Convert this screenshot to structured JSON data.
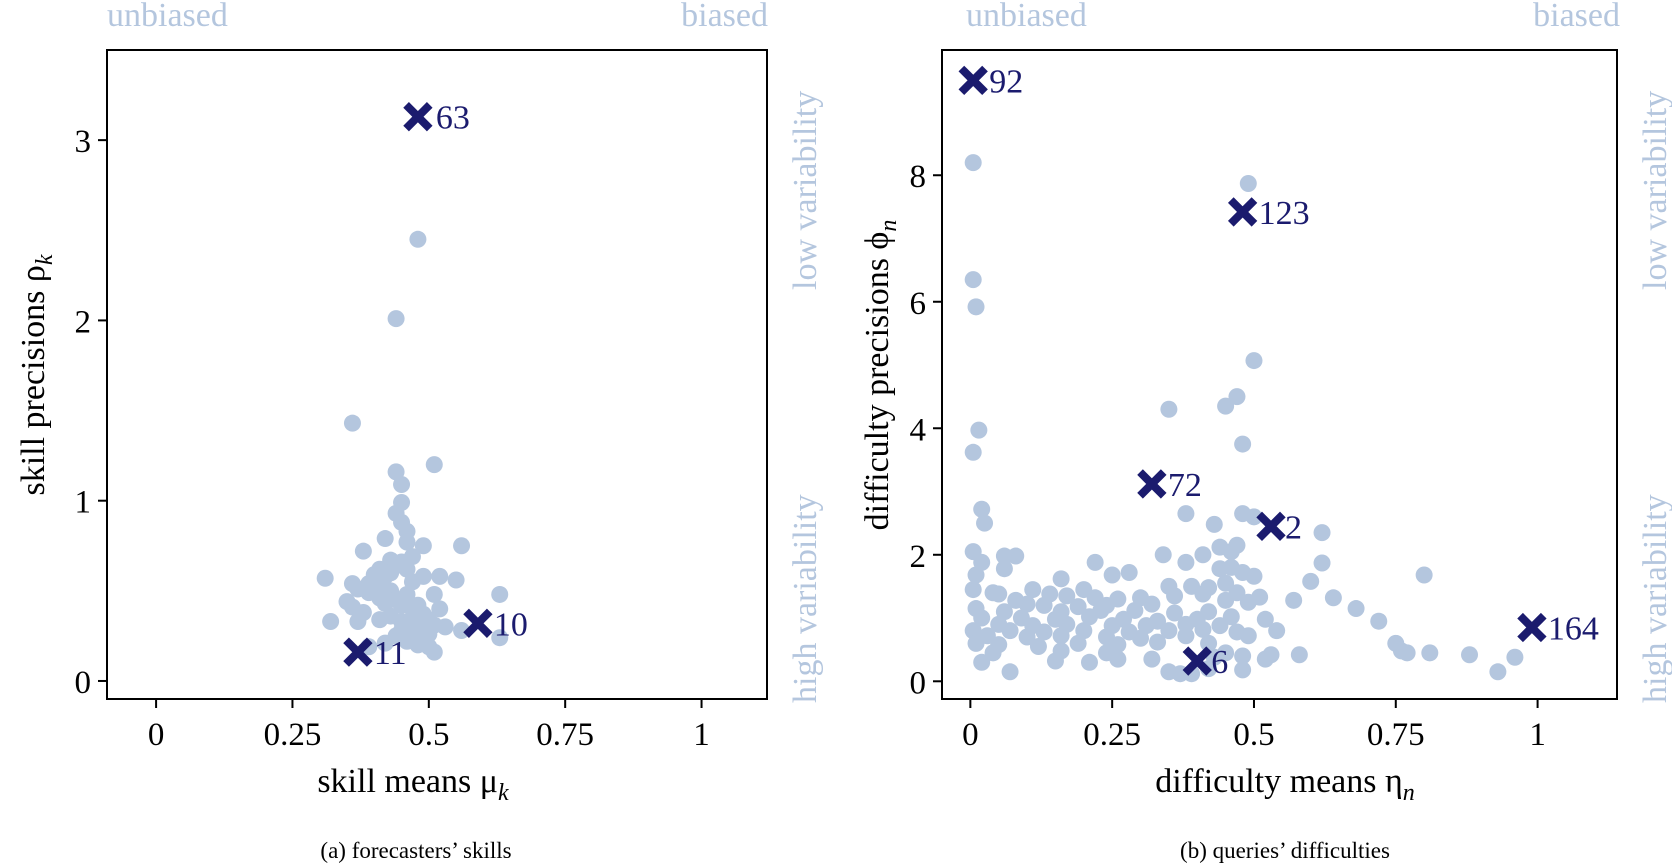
{
  "colors": {
    "points": "#b4c6de",
    "highlight": "#1b1b6e",
    "axes": "#000000",
    "faint_text": "#b4c6de"
  },
  "panel_a": {
    "caption": "(a) forecasters’ skills",
    "corner_left": "unbiased",
    "corner_right": "biased",
    "side_top": "low variability",
    "side_bottom": "high variability"
  },
  "panel_b": {
    "caption": "(b) queries’ difficulties",
    "corner_left": "unbiased",
    "corner_right": "biased",
    "side_top": "low variability",
    "side_bottom": "high variability"
  },
  "chart_data": [
    {
      "type": "scatter",
      "title": "",
      "xlabel": "skill means μ",
      "xlabel_subscript": "k",
      "ylabel": "skill precisions ρ",
      "ylabel_subscript": "k",
      "xlim": [
        -0.09,
        1.12
      ],
      "ylim": [
        -0.1,
        3.5
      ],
      "xticks": [
        0,
        0.25,
        0.5,
        0.75,
        1
      ],
      "xtick_labels": [
        "0",
        "0.25",
        "0.5",
        "0.75",
        "1"
      ],
      "yticks": [
        0,
        1,
        2,
        3
      ],
      "ytick_labels": [
        "0",
        "1",
        "2",
        "3"
      ],
      "grid": false,
      "series": [
        {
          "marker": "circle",
          "points": [
            [
              0.48,
              2.45
            ],
            [
              0.44,
              2.01
            ],
            [
              0.36,
              1.43
            ],
            [
              0.51,
              1.2
            ],
            [
              0.44,
              1.16
            ],
            [
              0.45,
              1.09
            ],
            [
              0.45,
              0.99
            ],
            [
              0.44,
              0.93
            ],
            [
              0.45,
              0.88
            ],
            [
              0.46,
              0.83
            ],
            [
              0.42,
              0.79
            ],
            [
              0.46,
              0.77
            ],
            [
              0.49,
              0.75
            ],
            [
              0.56,
              0.75
            ],
            [
              0.38,
              0.72
            ],
            [
              0.47,
              0.69
            ],
            [
              0.43,
              0.67
            ],
            [
              0.45,
              0.66
            ],
            [
              0.44,
              0.64
            ],
            [
              0.41,
              0.62
            ],
            [
              0.46,
              0.62
            ],
            [
              0.43,
              0.6
            ],
            [
              0.4,
              0.59
            ],
            [
              0.42,
              0.58
            ],
            [
              0.49,
              0.58
            ],
            [
              0.52,
              0.58
            ],
            [
              0.31,
              0.57
            ],
            [
              0.55,
              0.56
            ],
            [
              0.47,
              0.55
            ],
            [
              0.39,
              0.54
            ],
            [
              0.36,
              0.54
            ],
            [
              0.37,
              0.51
            ],
            [
              0.41,
              0.51
            ],
            [
              0.43,
              0.5
            ],
            [
              0.39,
              0.49
            ],
            [
              0.46,
              0.48
            ],
            [
              0.51,
              0.48
            ],
            [
              0.63,
              0.48
            ],
            [
              0.41,
              0.46
            ],
            [
              0.44,
              0.45
            ],
            [
              0.35,
              0.44
            ],
            [
              0.42,
              0.43
            ],
            [
              0.45,
              0.42
            ],
            [
              0.48,
              0.42
            ],
            [
              0.36,
              0.41
            ],
            [
              0.47,
              0.4
            ],
            [
              0.52,
              0.4
            ],
            [
              0.38,
              0.38
            ],
            [
              0.49,
              0.37
            ],
            [
              0.43,
              0.36
            ],
            [
              0.47,
              0.35
            ],
            [
              0.5,
              0.34
            ],
            [
              0.41,
              0.34
            ],
            [
              0.45,
              0.33
            ],
            [
              0.32,
              0.33
            ],
            [
              0.37,
              0.33
            ],
            [
              0.46,
              0.31
            ],
            [
              0.51,
              0.31
            ],
            [
              0.53,
              0.3
            ],
            [
              0.48,
              0.29
            ],
            [
              0.45,
              0.28
            ],
            [
              0.56,
              0.28
            ],
            [
              0.47,
              0.27
            ],
            [
              0.5,
              0.26
            ],
            [
              0.44,
              0.25
            ],
            [
              0.49,
              0.25
            ],
            [
              0.63,
              0.24
            ],
            [
              0.46,
              0.22
            ],
            [
              0.42,
              0.21
            ],
            [
              0.48,
              0.2
            ],
            [
              0.5,
              0.19
            ],
            [
              0.51,
              0.16
            ],
            [
              0.39,
              0.19
            ]
          ]
        },
        {
          "marker": "x",
          "highlighted": true,
          "points": [
            [
              0.48,
              3.13
            ],
            [
              0.59,
              0.32
            ],
            [
              0.37,
              0.16
            ]
          ],
          "labels": [
            "63",
            "10",
            "11"
          ]
        }
      ]
    },
    {
      "type": "scatter",
      "title": "",
      "xlabel": "difficulty means η",
      "xlabel_subscript": "n",
      "ylabel": "difficulty precisions ϕ",
      "ylabel_subscript": "n",
      "xlim": [
        -0.05,
        1.14
      ],
      "ylim": [
        -0.28,
        9.98
      ],
      "xticks": [
        0,
        0.25,
        0.5,
        0.75,
        1
      ],
      "xtick_labels": [
        "0",
        "0.25",
        "0.5",
        "0.75",
        "1"
      ],
      "yticks": [
        0,
        2,
        4,
        6,
        8
      ],
      "ytick_labels": [
        "0",
        "2",
        "4",
        "6",
        "8"
      ],
      "grid": false,
      "series": [
        {
          "marker": "circle",
          "points": [
            [
              0.005,
              8.2
            ],
            [
              0.49,
              7.87
            ],
            [
              0.005,
              6.35
            ],
            [
              0.01,
              5.92
            ],
            [
              0.5,
              5.07
            ],
            [
              0.47,
              4.5
            ],
            [
              0.45,
              4.35
            ],
            [
              0.35,
              4.3
            ],
            [
              0.015,
              3.97
            ],
            [
              0.005,
              3.62
            ],
            [
              0.48,
              3.75
            ],
            [
              0.02,
              2.72
            ],
            [
              0.38,
              2.65
            ],
            [
              0.43,
              2.48
            ],
            [
              0.48,
              2.65
            ],
            [
              0.5,
              2.6
            ],
            [
              0.025,
              2.5
            ],
            [
              0.62,
              2.35
            ],
            [
              0.47,
              2.15
            ],
            [
              0.46,
              2.05
            ],
            [
              0.44,
              2.12
            ],
            [
              0.41,
              2.0
            ],
            [
              0.34,
              2.0
            ],
            [
              0.005,
              2.05
            ],
            [
              0.06,
              1.98
            ],
            [
              0.08,
              1.98
            ],
            [
              0.02,
              1.88
            ],
            [
              0.22,
              1.88
            ],
            [
              0.38,
              1.88
            ],
            [
              0.62,
              1.87
            ],
            [
              0.46,
              1.8
            ],
            [
              0.44,
              1.78
            ],
            [
              0.48,
              1.72
            ],
            [
              0.28,
              1.72
            ],
            [
              0.25,
              1.68
            ],
            [
              0.06,
              1.78
            ],
            [
              0.8,
              1.68
            ],
            [
              0.01,
              1.68
            ],
            [
              0.16,
              1.62
            ],
            [
              0.5,
              1.66
            ],
            [
              0.45,
              1.55
            ],
            [
              0.04,
              1.4
            ],
            [
              0.11,
              1.45
            ],
            [
              0.2,
              1.45
            ],
            [
              0.35,
              1.5
            ],
            [
              0.39,
              1.5
            ],
            [
              0.42,
              1.48
            ],
            [
              0.6,
              1.58
            ],
            [
              0.005,
              1.45
            ],
            [
              0.05,
              1.38
            ],
            [
              0.14,
              1.38
            ],
            [
              0.17,
              1.35
            ],
            [
              0.22,
              1.32
            ],
            [
              0.26,
              1.3
            ],
            [
              0.3,
              1.32
            ],
            [
              0.36,
              1.35
            ],
            [
              0.41,
              1.38
            ],
            [
              0.47,
              1.4
            ],
            [
              0.51,
              1.33
            ],
            [
              0.57,
              1.28
            ],
            [
              0.64,
              1.32
            ],
            [
              0.08,
              1.28
            ],
            [
              0.1,
              1.22
            ],
            [
              0.13,
              1.2
            ],
            [
              0.19,
              1.18
            ],
            [
              0.24,
              1.2
            ],
            [
              0.32,
              1.22
            ],
            [
              0.45,
              1.28
            ],
            [
              0.49,
              1.25
            ],
            [
              0.68,
              1.15
            ],
            [
              0.01,
              1.15
            ],
            [
              0.06,
              1.1
            ],
            [
              0.16,
              1.1
            ],
            [
              0.23,
              1.12
            ],
            [
              0.29,
              1.12
            ],
            [
              0.36,
              1.08
            ],
            [
              0.42,
              1.1
            ],
            [
              0.02,
              1.0
            ],
            [
              0.09,
              1.0
            ],
            [
              0.15,
              0.98
            ],
            [
              0.21,
              1.02
            ],
            [
              0.27,
              0.98
            ],
            [
              0.33,
              0.95
            ],
            [
              0.4,
              0.98
            ],
            [
              0.46,
              1.02
            ],
            [
              0.52,
              0.98
            ],
            [
              0.72,
              0.95
            ],
            [
              0.05,
              0.9
            ],
            [
              0.11,
              0.88
            ],
            [
              0.17,
              0.9
            ],
            [
              0.25,
              0.88
            ],
            [
              0.31,
              0.88
            ],
            [
              0.38,
              0.9
            ],
            [
              0.44,
              0.88
            ],
            [
              0.005,
              0.8
            ],
            [
              0.07,
              0.8
            ],
            [
              0.13,
              0.78
            ],
            [
              0.2,
              0.8
            ],
            [
              0.28,
              0.78
            ],
            [
              0.35,
              0.8
            ],
            [
              0.41,
              0.82
            ],
            [
              0.47,
              0.78
            ],
            [
              0.54,
              0.8
            ],
            [
              0.03,
              0.72
            ],
            [
              0.1,
              0.7
            ],
            [
              0.16,
              0.72
            ],
            [
              0.24,
              0.7
            ],
            [
              0.3,
              0.68
            ],
            [
              0.38,
              0.72
            ],
            [
              0.49,
              0.72
            ],
            [
              0.01,
              0.6
            ],
            [
              0.05,
              0.58
            ],
            [
              0.12,
              0.55
            ],
            [
              0.19,
              0.6
            ],
            [
              0.26,
              0.58
            ],
            [
              0.33,
              0.62
            ],
            [
              0.42,
              0.6
            ],
            [
              0.75,
              0.6
            ],
            [
              0.04,
              0.45
            ],
            [
              0.16,
              0.48
            ],
            [
              0.24,
              0.45
            ],
            [
              0.45,
              0.45
            ],
            [
              0.53,
              0.42
            ],
            [
              0.58,
              0.42
            ],
            [
              0.76,
              0.48
            ],
            [
              0.77,
              0.45
            ],
            [
              0.81,
              0.45
            ],
            [
              0.88,
              0.42
            ],
            [
              0.96,
              0.38
            ],
            [
              0.02,
              0.3
            ],
            [
              0.15,
              0.32
            ],
            [
              0.26,
              0.35
            ],
            [
              0.32,
              0.35
            ],
            [
              0.43,
              0.38
            ],
            [
              0.48,
              0.4
            ],
            [
              0.52,
              0.35
            ],
            [
              0.21,
              0.3
            ],
            [
              0.35,
              0.15
            ],
            [
              0.42,
              0.2
            ],
            [
              0.48,
              0.18
            ],
            [
              0.07,
              0.15
            ],
            [
              0.93,
              0.15
            ],
            [
              0.37,
              0.12
            ],
            [
              0.39,
              0.12
            ]
          ]
        },
        {
          "marker": "x",
          "highlighted": true,
          "points": [
            [
              0.005,
              9.5
            ],
            [
              0.48,
              7.42
            ],
            [
              0.32,
              3.12
            ],
            [
              0.53,
              2.45
            ],
            [
              0.4,
              0.32
            ],
            [
              0.99,
              0.85
            ]
          ],
          "labels": [
            "92",
            "123",
            "72",
            "2",
            "6",
            "164"
          ]
        }
      ]
    }
  ]
}
